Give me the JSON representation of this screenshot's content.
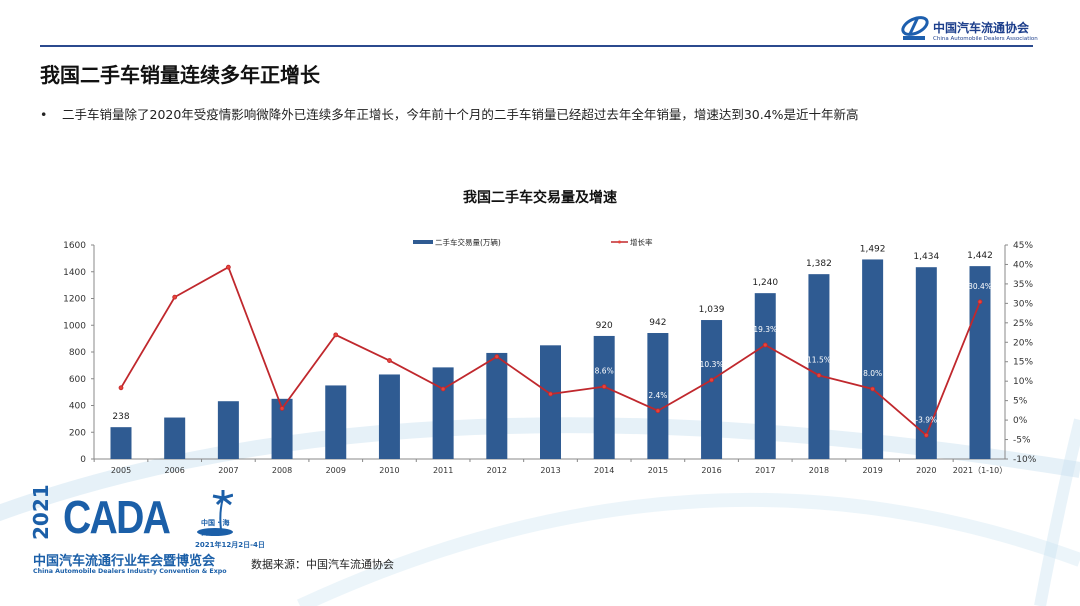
{
  "header": {
    "logo_cn": "中国汽车流通协会",
    "logo_en": "China Automobile Dealers Association",
    "title": "我国二手车销量连续多年正增长"
  },
  "bullet": {
    "marker": "•",
    "text": "二手车销量除了2020年受疫情影响微降外已连续多年正增长，今年前十个月的二手车销量已经超过去年全年销量，增速达到30.4%是近十年新高"
  },
  "chart_data": {
    "type": "bar+line",
    "title": "我国二手车交易量及增速",
    "categories": [
      "2005",
      "2006",
      "2007",
      "2008",
      "2009",
      "2010",
      "2011",
      "2012",
      "2013",
      "2014",
      "2015",
      "2016",
      "2017",
      "2018",
      "2019",
      "2020",
      "2021（1-10）"
    ],
    "series": [
      {
        "name": "二手车交易量(万辆)",
        "type": "bar",
        "axis": "left",
        "color": "#2f5b92",
        "values": [
          238,
          310,
          432,
          450,
          550,
          632,
          685,
          793,
          850,
          920,
          942,
          1039,
          1240,
          1382,
          1492,
          1434,
          1442
        ],
        "labels": [
          "238",
          "",
          "",
          "",
          "",
          "",
          "",
          "",
          "",
          "920",
          "942",
          "1,039",
          "1,240",
          "1,382",
          "1,492",
          "1,434",
          "1,442"
        ]
      },
      {
        "name": "增长率",
        "type": "line",
        "axis": "right",
        "color": "#c0282d",
        "values": [
          8.3,
          31.6,
          39.3,
          3.0,
          21.9,
          15.3,
          8.0,
          16.3,
          6.7,
          8.6,
          2.4,
          10.3,
          19.3,
          11.5,
          8.0,
          -3.9,
          30.4
        ],
        "labels": [
          "",
          "",
          "",
          "",
          "",
          "",
          "",
          "",
          "",
          "8.6%",
          "2.4%",
          "10.3%",
          "19.3%",
          "11.5%",
          "8.0%",
          "-3.9%",
          "30.4%"
        ]
      }
    ],
    "left_axis": {
      "ylim": [
        0,
        1600
      ],
      "ticks": [
        "0",
        "200",
        "400",
        "600",
        "800",
        "1000",
        "1200",
        "1400",
        "1600"
      ]
    },
    "right_axis": {
      "ylim": [
        -10,
        45
      ],
      "ticks": [
        "-10%",
        "-5%",
        "0%",
        "5%",
        "10%",
        "15%",
        "20%",
        "25%",
        "30%",
        "35%",
        "40%",
        "45%"
      ]
    },
    "legend_position": "top",
    "grid": false
  },
  "footer": {
    "cada_year": "2021",
    "cada_name": "CADA",
    "cada_location": "中国 · 海口",
    "cada_date": "2021年12月2日-4日",
    "cada_cn": "中国汽车流通行业年会暨博览会",
    "cada_en": "China Automobile Dealers Industry Convention & Expo",
    "source": "数据来源：中国汽车流通协会"
  }
}
